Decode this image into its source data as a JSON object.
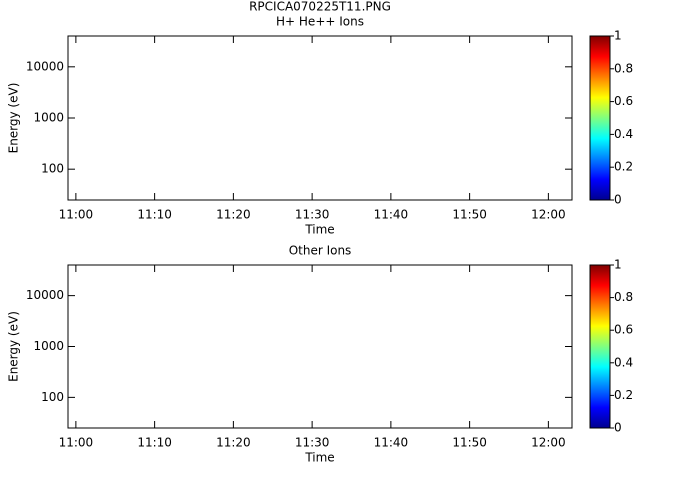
{
  "title": "RPCICA070225T11.PNG",
  "chart_data": [
    {
      "type": "spectrogram",
      "title": "H+ He++ Ions",
      "xlabel": "Time",
      "ylabel": "Energy (eV)",
      "xlim": [
        "10:59",
        "12:03"
      ],
      "xticks": [
        "11:00",
        "11:10",
        "11:20",
        "11:30",
        "11:40",
        "11:50",
        "12:00"
      ],
      "ylim": [
        25,
        40000
      ],
      "yticks": [
        100,
        1000,
        10000
      ],
      "yscale": "log",
      "colorbar": {
        "colormap": "jet",
        "lim": [
          0,
          1
        ],
        "ticks": [
          0,
          0.2,
          0.4,
          0.6,
          0.8,
          1
        ]
      }
    },
    {
      "type": "spectrogram",
      "title": "Other Ions",
      "xlabel": "Time",
      "ylabel": "Energy (eV)",
      "xlim": [
        "10:59",
        "12:03"
      ],
      "xticks": [
        "11:00",
        "11:10",
        "11:20",
        "11:30",
        "11:40",
        "11:50",
        "12:00"
      ],
      "ylim": [
        25,
        40000
      ],
      "yticks": [
        100,
        1000,
        10000
      ],
      "yscale": "log",
      "colorbar": {
        "colormap": "jet",
        "lim": [
          0,
          1
        ],
        "ticks": [
          0,
          0.2,
          0.4,
          0.6,
          0.8,
          1
        ]
      }
    }
  ]
}
